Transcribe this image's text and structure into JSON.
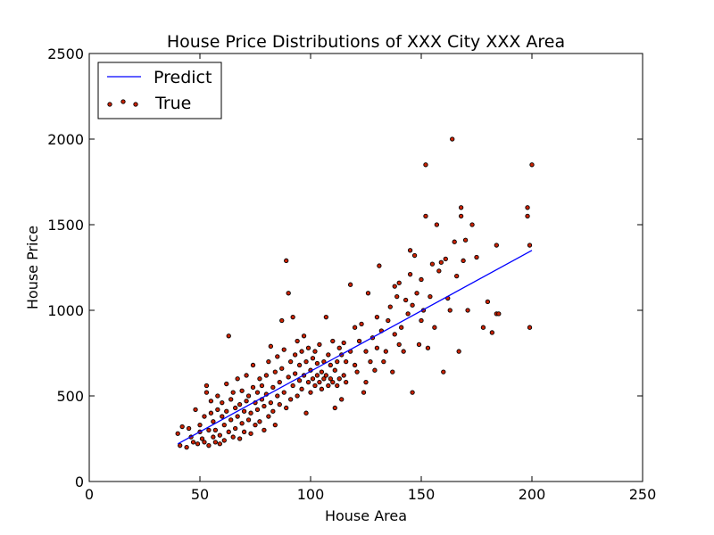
{
  "chart_data": {
    "type": "scatter",
    "title": "House Price Distributions of XXX City XXX Area",
    "xlabel": "House Area",
    "ylabel": "House Price",
    "xlim": [
      0,
      250
    ],
    "ylim": [
      0,
      2500
    ],
    "xticks": [
      "0",
      "50",
      "100",
      "150",
      "200",
      "250"
    ],
    "yticks": [
      "0",
      "500",
      "1000",
      "1500",
      "2000",
      "2500"
    ],
    "grid": false,
    "legend_position": "top-left",
    "colors": {
      "predict": "#0000ff",
      "true_fill": "#cc2200",
      "true_edge": "#000000"
    },
    "series": [
      {
        "name": "Predict",
        "kind": "line",
        "x": [
          40,
          200
        ],
        "y": [
          220,
          1350
        ]
      },
      {
        "name": "True",
        "kind": "scatter",
        "points": [
          [
            40,
            280
          ],
          [
            41,
            210
          ],
          [
            42,
            320
          ],
          [
            44,
            200
          ],
          [
            45,
            310
          ],
          [
            46,
            260
          ],
          [
            47,
            230
          ],
          [
            48,
            420
          ],
          [
            49,
            220
          ],
          [
            50,
            330
          ],
          [
            50,
            290
          ],
          [
            51,
            250
          ],
          [
            52,
            380
          ],
          [
            52,
            230
          ],
          [
            53,
            520
          ],
          [
            53,
            560
          ],
          [
            54,
            210
          ],
          [
            54,
            300
          ],
          [
            55,
            470
          ],
          [
            55,
            400
          ],
          [
            56,
            260
          ],
          [
            56,
            350
          ],
          [
            57,
            300
          ],
          [
            57,
            230
          ],
          [
            58,
            420
          ],
          [
            58,
            500
          ],
          [
            59,
            270
          ],
          [
            59,
            220
          ],
          [
            60,
            380
          ],
          [
            60,
            460
          ],
          [
            61,
            330
          ],
          [
            61,
            240
          ],
          [
            62,
            570
          ],
          [
            62,
            410
          ],
          [
            63,
            290
          ],
          [
            63,
            850
          ],
          [
            64,
            360
          ],
          [
            64,
            480
          ],
          [
            65,
            260
          ],
          [
            65,
            520
          ],
          [
            66,
            430
          ],
          [
            66,
            310
          ],
          [
            67,
            600
          ],
          [
            67,
            380
          ],
          [
            68,
            250
          ],
          [
            68,
            450
          ],
          [
            69,
            340
          ],
          [
            69,
            530
          ],
          [
            70,
            290
          ],
          [
            70,
            410
          ],
          [
            71,
            470
          ],
          [
            71,
            620
          ],
          [
            72,
            360
          ],
          [
            72,
            500
          ],
          [
            73,
            280
          ],
          [
            73,
            400
          ],
          [
            74,
            550
          ],
          [
            74,
            680
          ],
          [
            75,
            330
          ],
          [
            75,
            460
          ],
          [
            76,
            520
          ],
          [
            76,
            420
          ],
          [
            77,
            600
          ],
          [
            77,
            350
          ],
          [
            78,
            480
          ],
          [
            78,
            560
          ],
          [
            79,
            300
          ],
          [
            79,
            440
          ],
          [
            80,
            620
          ],
          [
            80,
            510
          ],
          [
            81,
            380
          ],
          [
            81,
            700
          ],
          [
            82,
            460
          ],
          [
            82,
            790
          ],
          [
            83,
            550
          ],
          [
            83,
            410
          ],
          [
            84,
            640
          ],
          [
            84,
            330
          ],
          [
            85,
            500
          ],
          [
            85,
            730
          ],
          [
            86,
            580
          ],
          [
            86,
            450
          ],
          [
            87,
            660
          ],
          [
            87,
            940
          ],
          [
            88,
            520
          ],
          [
            88,
            770
          ],
          [
            89,
            1290
          ],
          [
            89,
            430
          ],
          [
            90,
            1100
          ],
          [
            90,
            610
          ],
          [
            91,
            700
          ],
          [
            91,
            480
          ],
          [
            92,
            560
          ],
          [
            92,
            960
          ],
          [
            93,
            740
          ],
          [
            93,
            630
          ],
          [
            94,
            820
          ],
          [
            94,
            500
          ],
          [
            95,
            680
          ],
          [
            95,
            590
          ],
          [
            96,
            760
          ],
          [
            96,
            540
          ],
          [
            97,
            620
          ],
          [
            97,
            850
          ],
          [
            98,
            700
          ],
          [
            98,
            400
          ],
          [
            99,
            580
          ],
          [
            99,
            780
          ],
          [
            100,
            650
          ],
          [
            100,
            520
          ],
          [
            101,
            720
          ],
          [
            101,
            600
          ],
          [
            102,
            560
          ],
          [
            102,
            760
          ],
          [
            103,
            620
          ],
          [
            103,
            690
          ],
          [
            104,
            580
          ],
          [
            104,
            800
          ],
          [
            105,
            640
          ],
          [
            105,
            540
          ],
          [
            106,
            700
          ],
          [
            106,
            600
          ],
          [
            107,
            960
          ],
          [
            107,
            620
          ],
          [
            108,
            560
          ],
          [
            108,
            740
          ],
          [
            109,
            680
          ],
          [
            109,
            600
          ],
          [
            110,
            580
          ],
          [
            110,
            820
          ],
          [
            111,
            650
          ],
          [
            111,
            430
          ],
          [
            112,
            700
          ],
          [
            112,
            560
          ],
          [
            113,
            780
          ],
          [
            113,
            600
          ],
          [
            114,
            740
          ],
          [
            114,
            480
          ],
          [
            115,
            620
          ],
          [
            115,
            810
          ],
          [
            116,
            700
          ],
          [
            116,
            580
          ],
          [
            118,
            1150
          ],
          [
            118,
            760
          ],
          [
            120,
            680
          ],
          [
            120,
            900
          ],
          [
            121,
            640
          ],
          [
            122,
            820
          ],
          [
            123,
            920
          ],
          [
            124,
            520
          ],
          [
            125,
            760
          ],
          [
            125,
            580
          ],
          [
            126,
            1100
          ],
          [
            127,
            700
          ],
          [
            128,
            840
          ],
          [
            129,
            650
          ],
          [
            130,
            780
          ],
          [
            130,
            960
          ],
          [
            131,
            1260
          ],
          [
            132,
            880
          ],
          [
            133,
            700
          ],
          [
            134,
            760
          ],
          [
            135,
            940
          ],
          [
            136,
            1020
          ],
          [
            137,
            640
          ],
          [
            138,
            1140
          ],
          [
            138,
            860
          ],
          [
            139,
            1080
          ],
          [
            140,
            800
          ],
          [
            140,
            1160
          ],
          [
            141,
            900
          ],
          [
            142,
            760
          ],
          [
            143,
            1060
          ],
          [
            144,
            980
          ],
          [
            145,
            1350
          ],
          [
            145,
            1210
          ],
          [
            146,
            520
          ],
          [
            146,
            1030
          ],
          [
            147,
            1320
          ],
          [
            148,
            1100
          ],
          [
            149,
            800
          ],
          [
            150,
            1180
          ],
          [
            150,
            940
          ],
          [
            151,
            1000
          ],
          [
            152,
            1550
          ],
          [
            152,
            1850
          ],
          [
            153,
            780
          ],
          [
            154,
            1080
          ],
          [
            155,
            1270
          ],
          [
            156,
            900
          ],
          [
            157,
            1500
          ],
          [
            158,
            1230
          ],
          [
            159,
            1280
          ],
          [
            160,
            640
          ],
          [
            161,
            1300
          ],
          [
            162,
            1070
          ],
          [
            163,
            1000
          ],
          [
            164,
            2000
          ],
          [
            165,
            1400
          ],
          [
            166,
            1200
          ],
          [
            167,
            760
          ],
          [
            168,
            1600
          ],
          [
            168,
            1550
          ],
          [
            169,
            1290
          ],
          [
            170,
            1410
          ],
          [
            171,
            1000
          ],
          [
            173,
            1500
          ],
          [
            175,
            1310
          ],
          [
            178,
            900
          ],
          [
            180,
            1050
          ],
          [
            182,
            870
          ],
          [
            184,
            1380
          ],
          [
            184,
            980
          ],
          [
            185,
            980
          ],
          [
            198,
            1600
          ],
          [
            198,
            1550
          ],
          [
            199,
            1380
          ],
          [
            199,
            900
          ],
          [
            200,
            1850
          ]
        ]
      }
    ]
  }
}
